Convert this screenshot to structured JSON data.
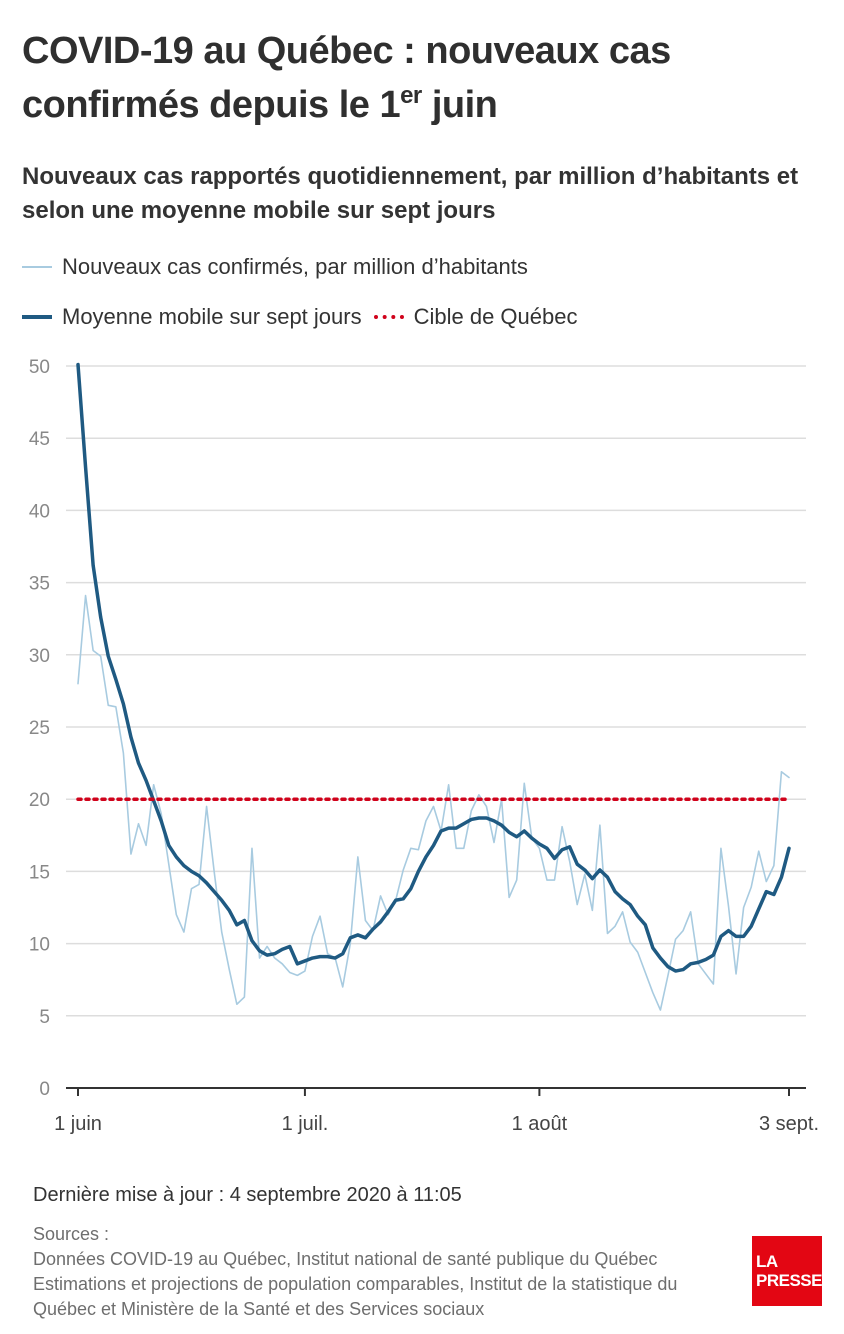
{
  "title": {
    "main": "COVID-19 au Québec : nouveaux cas confirmés depuis le 1",
    "sup": "er",
    "end": " juin"
  },
  "subtitle": "Nouveaux cas rapportés quotidiennement, par million d’habitants et selon une moyenne mobile sur sept jours",
  "legend": {
    "daily": "Nouveaux cas confirmés, par million d’habitants",
    "average": "Moyenne mobile sur sept jours",
    "target": "Cible de Québec"
  },
  "colors": {
    "daily": "#a8cbe0",
    "average": "#1f5a82",
    "target": "#d0021b",
    "grid": "#dddddd",
    "axis": "#333333"
  },
  "footer": {
    "updated": "Dernière mise à jour : 4 septembre 2020 à 11:05",
    "sources_label": "Sources :",
    "sources_lines": [
      "Données COVID-19 au Québec, Institut national de santé publique du Québec",
      "Estimations et projections de population comparables, Institut de la statistique du",
      "Québec et Ministère de la Santé et des Services sociaux"
    ]
  },
  "logo": {
    "line1": "LA",
    "line2": "PRESSE"
  },
  "chart_data": {
    "type": "line",
    "ylim": [
      0,
      50
    ],
    "yticks": [
      0,
      5,
      10,
      15,
      20,
      25,
      30,
      35,
      40,
      45,
      50
    ],
    "x_start": "2020-06-01",
    "x_end": "2020-09-03",
    "xticks": [
      {
        "date": "2020-06-01",
        "label": "1 juin"
      },
      {
        "date": "2020-07-01",
        "label": "1 juil."
      },
      {
        "date": "2020-08-01",
        "label": "1 août"
      },
      {
        "date": "2020-09-03",
        "label": "3 sept."
      }
    ],
    "grid": true,
    "target": 20,
    "series": [
      {
        "name": "Nouveaux cas confirmés, par million d’habitants",
        "values": [
          28.0,
          34.1,
          30.3,
          29.9,
          26.5,
          26.4,
          23.2,
          16.2,
          18.3,
          16.8,
          21.0,
          19.0,
          15.5,
          12.0,
          10.8,
          13.8,
          14.1,
          19.5,
          15.0,
          10.8,
          8.2,
          5.8,
          6.3,
          16.6,
          9.0,
          9.8,
          9.0,
          8.6,
          8.0,
          7.8,
          8.1,
          10.5,
          11.9,
          9.3,
          9.0,
          7.0,
          10.0,
          16.0,
          11.6,
          10.9,
          13.3,
          12.0,
          13.0,
          15.1,
          16.6,
          16.5,
          18.5,
          19.5,
          17.8,
          21.0,
          16.6,
          16.6,
          19.2,
          20.3,
          19.5,
          17.0,
          20.0,
          13.2,
          14.4,
          21.1,
          17.3,
          16.6,
          14.4,
          14.4,
          18.1,
          15.7,
          12.7,
          14.8,
          12.3,
          18.2,
          10.7,
          11.2,
          12.2,
          10.1,
          9.4,
          8.0,
          6.6,
          5.4,
          7.8,
          10.3,
          10.9,
          12.2,
          8.6,
          7.9,
          7.2,
          16.6,
          12.6,
          7.9,
          12.5,
          13.9,
          16.4,
          14.3,
          15.4,
          21.9,
          21.5
        ],
        "color": "#a8cbe0"
      },
      {
        "name": "Moyenne mobile sur sept jours",
        "values": [
          50.1,
          43.0,
          36.2,
          32.6,
          29.9,
          28.3,
          26.6,
          24.3,
          22.5,
          21.3,
          19.9,
          18.5,
          16.8,
          16.0,
          15.4,
          15.0,
          14.7,
          14.2,
          13.6,
          13.0,
          12.3,
          11.3,
          11.6,
          10.2,
          9.5,
          9.2,
          9.3,
          9.6,
          9.8,
          8.6,
          8.8,
          9.0,
          9.1,
          9.1,
          9.0,
          9.3,
          10.4,
          10.6,
          10.4,
          11.0,
          11.5,
          12.2,
          13.0,
          13.1,
          13.8,
          15.0,
          16.0,
          16.8,
          17.8,
          18.0,
          18.0,
          18.3,
          18.6,
          18.7,
          18.7,
          18.5,
          18.2,
          17.7,
          17.4,
          17.8,
          17.3,
          16.9,
          16.6,
          15.9,
          16.5,
          16.7,
          15.5,
          15.1,
          14.5,
          15.1,
          14.6,
          13.6,
          13.1,
          12.7,
          11.9,
          11.3,
          9.7,
          9.0,
          8.4,
          8.1,
          8.2,
          8.6,
          8.7,
          8.9,
          9.2,
          10.5,
          10.9,
          10.5,
          10.5,
          11.2,
          12.4,
          13.6,
          13.4,
          14.6,
          16.6
        ],
        "color": "#1f5a82"
      }
    ]
  }
}
